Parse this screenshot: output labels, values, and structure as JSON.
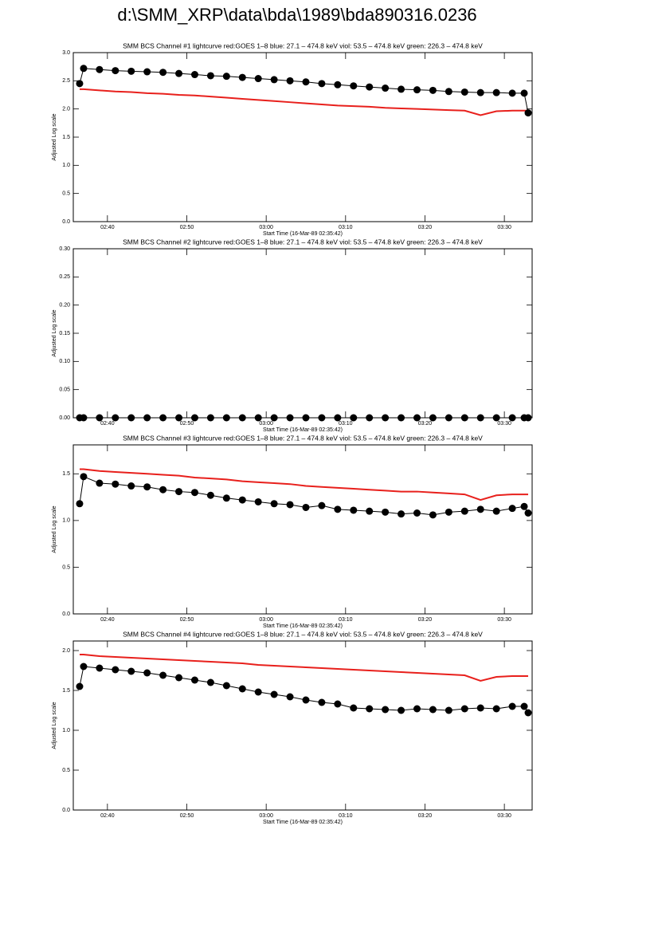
{
  "title": "d:\\SMM_XRP\\data\\bda\\1989\\bda890316.0236",
  "chart_data": [
    {
      "type": "line",
      "title": "SMM BCS Channel #1 lightcurve  red:GOES 1–8  blue: 27.1 – 474.8 keV  viol: 53.5 – 474.8 keV  green: 226.3 – 474.8 keV",
      "x_label": "Start Time (16-Mar-89 02:35:42)",
      "y_label": "Adjusted Log scale",
      "x": [
        "02:36:30",
        "02:37",
        "02:39",
        "02:41",
        "02:43",
        "02:45",
        "02:47",
        "02:49",
        "02:51",
        "02:53",
        "02:55",
        "02:57",
        "02:59",
        "03:01",
        "03:03",
        "03:05",
        "03:07",
        "03:09",
        "03:11",
        "03:13",
        "03:15",
        "03:17",
        "03:19",
        "03:21",
        "03:23",
        "03:25",
        "03:27",
        "03:29",
        "03:31",
        "03:32:30",
        "03:33"
      ],
      "xlim": [
        "02:35:42",
        "03:33:30"
      ],
      "xticks": [
        "02:40",
        "02:50",
        "03:00",
        "03:10",
        "03:20",
        "03:30"
      ],
      "ylim": [
        0,
        3
      ],
      "yticks": [
        {
          "value": 0,
          "label": "0.0"
        },
        0.5,
        {
          "value": 1,
          "label": "1.0"
        },
        1.5,
        {
          "value": 2,
          "label": "2.0"
        },
        2.5,
        {
          "value": 3,
          "label": "3.0"
        }
      ],
      "series": [
        {
          "color": "#000000",
          "markers": true,
          "values": [
            2.45,
            2.72,
            2.7,
            2.68,
            2.67,
            2.66,
            2.65,
            2.63,
            2.61,
            2.59,
            2.58,
            2.56,
            2.54,
            2.52,
            2.5,
            2.48,
            2.45,
            2.43,
            2.41,
            2.39,
            2.37,
            2.35,
            2.34,
            2.33,
            2.31,
            2.3,
            2.29,
            2.29,
            2.28,
            2.28,
            1.93
          ]
        },
        {
          "color": "#e8201c",
          "markers": false,
          "values": [
            2.35,
            2.35,
            2.33,
            2.31,
            2.3,
            2.28,
            2.27,
            2.25,
            2.24,
            2.22,
            2.2,
            2.18,
            2.16,
            2.14,
            2.12,
            2.1,
            2.08,
            2.06,
            2.05,
            2.04,
            2.02,
            2.01,
            2.0,
            1.99,
            1.98,
            1.97,
            1.89,
            1.96,
            1.97,
            1.97,
            1.97
          ]
        }
      ]
    },
    {
      "type": "line",
      "title": "SMM BCS Channel #2 lightcurve  red:GOES 1–8  blue: 27.1 – 474.8 keV  viol: 53.5 – 474.8 keV  green: 226.3 – 474.8 keV",
      "x_label": "Start Time (16-Mar-89 02:35:42)",
      "y_label": "Adjusted Log scale",
      "x": [
        "02:36:30",
        "02:37",
        "02:39",
        "02:41",
        "02:43",
        "02:45",
        "02:47",
        "02:49",
        "02:51",
        "02:53",
        "02:55",
        "02:57",
        "02:59",
        "03:01",
        "03:03",
        "03:05",
        "03:07",
        "03:09",
        "03:11",
        "03:13",
        "03:15",
        "03:17",
        "03:19",
        "03:21",
        "03:23",
        "03:25",
        "03:27",
        "03:29",
        "03:31",
        "03:32:30",
        "03:33"
      ],
      "xlim": [
        "02:35:42",
        "03:33:30"
      ],
      "xticks": [
        "02:40",
        "02:50",
        "03:00",
        "03:10",
        "03:20",
        "03:30"
      ],
      "ylim": [
        0,
        0.3
      ],
      "yticks": [
        {
          "value": 0,
          "label": "0.00"
        },
        {
          "value": 0.05,
          "label": "0.05"
        },
        {
          "value": 0.1,
          "label": "0.10"
        },
        {
          "value": 0.15,
          "label": "0.15"
        },
        {
          "value": 0.2,
          "label": "0.20"
        },
        {
          "value": 0.25,
          "label": "0.25"
        },
        {
          "value": 0.3,
          "label": "0.30"
        }
      ],
      "series": [
        {
          "color": "#000000",
          "markers": true,
          "values": [
            0,
            0,
            0,
            0,
            0,
            0,
            0,
            0,
            0,
            0,
            0,
            0,
            0,
            0,
            0,
            0,
            0,
            0,
            0,
            0,
            0,
            0,
            0,
            0,
            0,
            0,
            0,
            0,
            0,
            0,
            0
          ]
        }
      ]
    },
    {
      "type": "line",
      "title": "SMM BCS Channel #3 lightcurve  red:GOES 1–8  blue: 27.1 – 474.8 keV  viol: 53.5 – 474.8 keV  green: 226.3 – 474.8 keV",
      "x_label": "Start Time (16-Mar-89 02:35:42)",
      "y_label": "Adjusted Log scale",
      "x": [
        "02:36:30",
        "02:37",
        "02:39",
        "02:41",
        "02:43",
        "02:45",
        "02:47",
        "02:49",
        "02:51",
        "02:53",
        "02:55",
        "02:57",
        "02:59",
        "03:01",
        "03:03",
        "03:05",
        "03:07",
        "03:09",
        "03:11",
        "03:13",
        "03:15",
        "03:17",
        "03:19",
        "03:21",
        "03:23",
        "03:25",
        "03:27",
        "03:29",
        "03:31",
        "03:32:30",
        "03:33"
      ],
      "xlim": [
        "02:35:42",
        "03:33:30"
      ],
      "xticks": [
        "02:40",
        "02:50",
        "03:00",
        "03:10",
        "03:20",
        "03:30"
      ],
      "ylim": [
        0,
        1.81
      ],
      "yticks": [
        {
          "value": 0,
          "label": "0.0"
        },
        0.5,
        {
          "value": 1,
          "label": "1.0"
        },
        1.5
      ],
      "series": [
        {
          "color": "#000000",
          "markers": true,
          "values": [
            1.18,
            1.47,
            1.4,
            1.39,
            1.37,
            1.36,
            1.33,
            1.31,
            1.3,
            1.27,
            1.24,
            1.22,
            1.2,
            1.18,
            1.17,
            1.14,
            1.16,
            1.12,
            1.11,
            1.1,
            1.09,
            1.07,
            1.08,
            1.06,
            1.09,
            1.1,
            1.12,
            1.1,
            1.13,
            1.15,
            1.08
          ]
        },
        {
          "color": "#e8201c",
          "markers": false,
          "values": [
            1.55,
            1.55,
            1.53,
            1.52,
            1.51,
            1.5,
            1.49,
            1.48,
            1.46,
            1.45,
            1.44,
            1.42,
            1.41,
            1.4,
            1.39,
            1.37,
            1.36,
            1.35,
            1.34,
            1.33,
            1.32,
            1.31,
            1.31,
            1.3,
            1.29,
            1.28,
            1.22,
            1.27,
            1.28,
            1.28,
            1.28
          ]
        }
      ]
    },
    {
      "type": "line",
      "title": "SMM BCS Channel #4 lightcurve  red:GOES 1–8  blue: 27.1 – 474.8 keV  viol: 53.5 – 474.8 keV  green: 226.3 – 474.8 keV",
      "x_label": "Start Time (16-Mar-89 02:35:42)",
      "y_label": "Adjusted Log scale",
      "x": [
        "02:36:30",
        "02:37",
        "02:39",
        "02:41",
        "02:43",
        "02:45",
        "02:47",
        "02:49",
        "02:51",
        "02:53",
        "02:55",
        "02:57",
        "02:59",
        "03:01",
        "03:03",
        "03:05",
        "03:07",
        "03:09",
        "03:11",
        "03:13",
        "03:15",
        "03:17",
        "03:19",
        "03:21",
        "03:23",
        "03:25",
        "03:27",
        "03:29",
        "03:31",
        "03:32:30",
        "03:33"
      ],
      "xlim": [
        "02:35:42",
        "03:33:30"
      ],
      "xticks": [
        "02:40",
        "02:50",
        "03:00",
        "03:10",
        "03:20",
        "03:30"
      ],
      "ylim": [
        0,
        2.12
      ],
      "yticks": [
        {
          "value": 0,
          "label": "0.0"
        },
        0.5,
        {
          "value": 1,
          "label": "1.0"
        },
        1.5,
        {
          "value": 2,
          "label": "2.0"
        }
      ],
      "series": [
        {
          "color": "#000000",
          "markers": true,
          "values": [
            1.55,
            1.8,
            1.78,
            1.76,
            1.74,
            1.72,
            1.69,
            1.66,
            1.63,
            1.6,
            1.56,
            1.52,
            1.48,
            1.45,
            1.42,
            1.38,
            1.35,
            1.33,
            1.28,
            1.27,
            1.26,
            1.25,
            1.27,
            1.26,
            1.25,
            1.27,
            1.28,
            1.27,
            1.3,
            1.3,
            1.22
          ]
        },
        {
          "color": "#e8201c",
          "markers": false,
          "values": [
            1.95,
            1.95,
            1.93,
            1.92,
            1.91,
            1.9,
            1.89,
            1.88,
            1.87,
            1.86,
            1.85,
            1.84,
            1.82,
            1.81,
            1.8,
            1.79,
            1.78,
            1.77,
            1.76,
            1.75,
            1.74,
            1.73,
            1.72,
            1.71,
            1.7,
            1.69,
            1.62,
            1.67,
            1.68,
            1.68,
            1.68
          ]
        }
      ]
    }
  ]
}
